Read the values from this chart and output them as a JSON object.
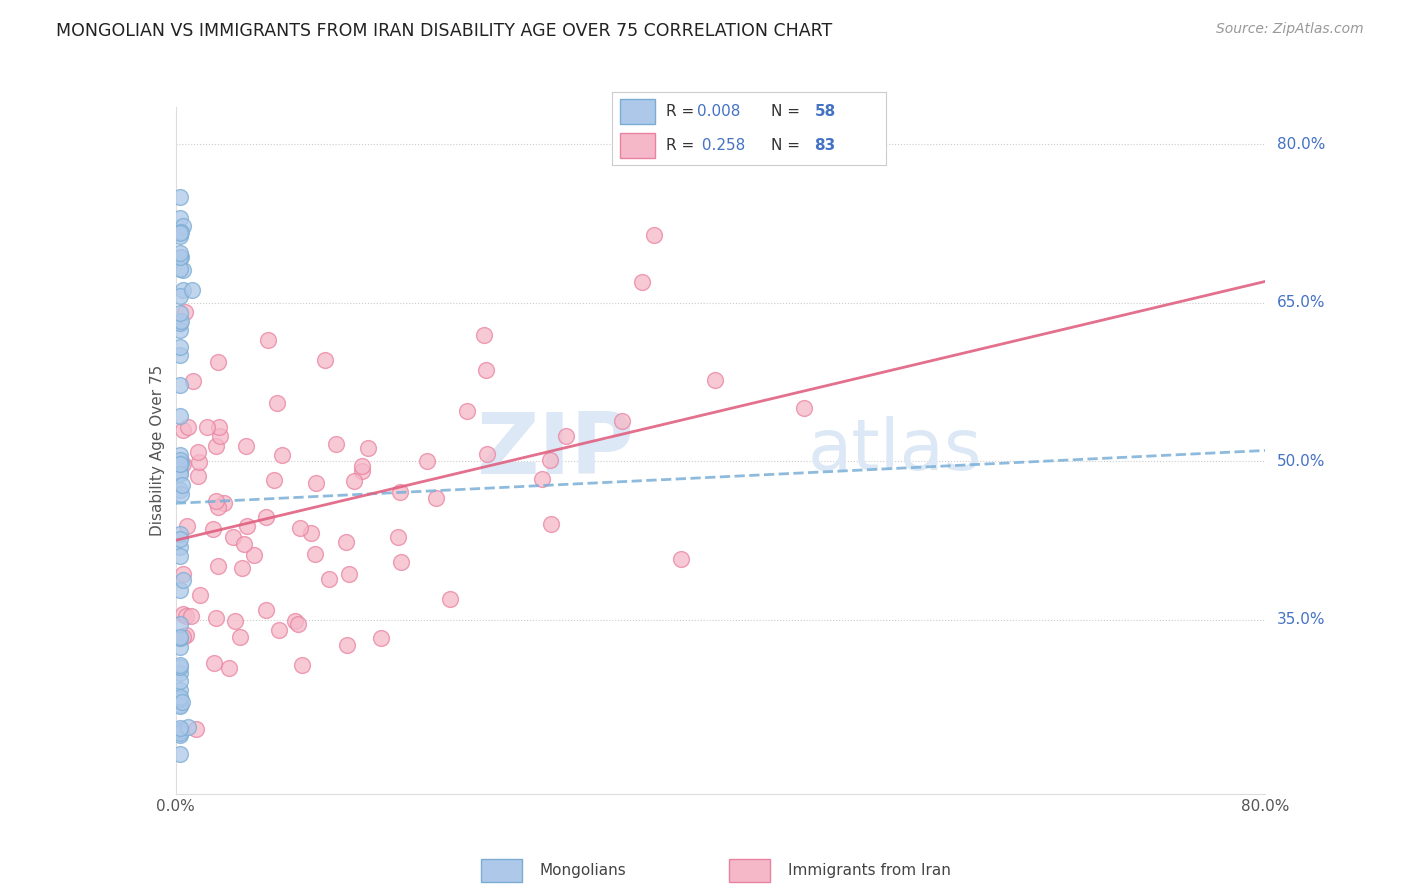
{
  "title": "MONGOLIAN VS IMMIGRANTS FROM IRAN DISABILITY AGE OVER 75 CORRELATION CHART",
  "source": "Source: ZipAtlas.com",
  "ylabel": "Disability Age Over 75",
  "y_ticks_right": [
    "80.0%",
    "65.0%",
    "50.0%",
    "35.0%"
  ],
  "y_ticks_right_vals": [
    0.8,
    0.65,
    0.5,
    0.35
  ],
  "xlim": [
    0.0,
    0.8
  ],
  "ylim": [
    0.185,
    0.835
  ],
  "bottom_legend_1": "Mongolians",
  "bottom_legend_2": "Immigrants from Iran",
  "color_blue_fill": "#adc8e8",
  "color_blue_edge": "#7aacd4",
  "color_pink_fill": "#f5b8c8",
  "color_pink_edge": "#e882a0",
  "line_blue_color": "#7ab0d8",
  "line_pink_color": "#e06080",
  "grid_color": "#cccccc",
  "watermark_color": "#dce8f5",
  "title_color": "#222222",
  "source_color": "#999999",
  "tick_color": "#4472c4",
  "ylabel_color": "#555555",
  "legend_text_color": "#333333",
  "legend_num_color": "#4472c4",
  "mongolian_seed": 7,
  "iran_seed": 13,
  "trend_blue_start_y": 0.46,
  "trend_blue_end_y": 0.51,
  "trend_pink_start_y": 0.425,
  "trend_pink_end_y": 0.67
}
